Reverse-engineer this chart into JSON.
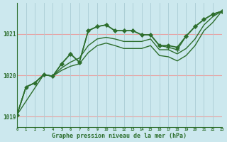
{
  "title": "Graphe pression niveau de la mer (hPa)",
  "bg_color": "#cce8ee",
  "line_color": "#2d6e2d",
  "xlim": [
    0,
    23
  ],
  "ylim": [
    1018.75,
    1021.75
  ],
  "yticks": [
    1019,
    1020,
    1021
  ],
  "xticks": [
    0,
    1,
    2,
    3,
    4,
    5,
    6,
    7,
    8,
    9,
    10,
    11,
    12,
    13,
    14,
    15,
    16,
    17,
    18,
    19,
    20,
    21,
    22,
    23
  ],
  "hgrid_color": "#e8a0a0",
  "vgrid_color": "#aaccd4",
  "series": [
    {
      "x": [
        0,
        1,
        2,
        3,
        4,
        5,
        6,
        7,
        8,
        9,
        10,
        11,
        12,
        13,
        14,
        15,
        16,
        17,
        18,
        19,
        20,
        21,
        22,
        23
      ],
      "y": [
        1019.05,
        1019.72,
        1019.82,
        1020.02,
        1019.98,
        1020.28,
        1020.52,
        1020.32,
        1021.08,
        1021.18,
        1021.22,
        1021.08,
        1021.08,
        1021.08,
        1020.98,
        1020.98,
        1020.72,
        1020.72,
        1020.68,
        1020.95,
        1021.18,
        1021.35,
        1021.48,
        1021.55
      ],
      "marker": "D",
      "markersize": 2.5,
      "linewidth": 1.2
    },
    {
      "x": [
        0,
        1,
        2,
        3,
        4,
        5,
        6,
        7,
        8,
        9,
        10,
        11,
        12,
        13,
        14,
        15,
        16,
        17,
        18,
        19,
        20,
        21,
        22,
        23
      ],
      "y": [
        1019.05,
        1019.72,
        1019.82,
        1020.02,
        1019.98,
        1020.18,
        1020.32,
        1020.42,
        1020.72,
        1020.88,
        1020.92,
        1020.88,
        1020.82,
        1020.82,
        1020.82,
        1020.88,
        1020.62,
        1020.62,
        1020.52,
        1020.65,
        1020.88,
        1021.22,
        1021.42,
        1021.55
      ],
      "marker": null,
      "linewidth": 1.0
    },
    {
      "x": [
        0,
        1,
        2,
        3,
        4,
        5,
        6,
        7,
        8,
        9,
        10,
        11,
        12,
        13,
        14,
        15,
        16,
        17,
        18,
        19,
        20,
        21,
        22,
        23
      ],
      "y": [
        1019.05,
        1019.72,
        1019.82,
        1020.02,
        1019.98,
        1020.12,
        1020.22,
        1020.28,
        1020.55,
        1020.72,
        1020.78,
        1020.72,
        1020.65,
        1020.65,
        1020.65,
        1020.72,
        1020.48,
        1020.45,
        1020.35,
        1020.48,
        1020.72,
        1021.08,
        1021.28,
        1021.55
      ],
      "marker": null,
      "linewidth": 1.0
    },
    {
      "x": [
        0,
        3,
        4,
        5,
        6,
        7,
        8,
        9,
        10,
        11,
        12,
        13,
        14,
        15,
        16,
        17,
        18,
        19,
        20,
        21,
        22,
        23
      ],
      "y": [
        1019.05,
        1020.02,
        1019.98,
        1020.28,
        1020.52,
        1020.32,
        1021.08,
        1021.18,
        1021.22,
        1021.08,
        1021.08,
        1021.08,
        1020.98,
        1020.98,
        1020.72,
        1020.68,
        1020.62,
        1020.95,
        1021.18,
        1021.35,
        1021.48,
        1021.55
      ],
      "marker": "+",
      "markersize": 4,
      "linewidth": 1.0
    }
  ]
}
